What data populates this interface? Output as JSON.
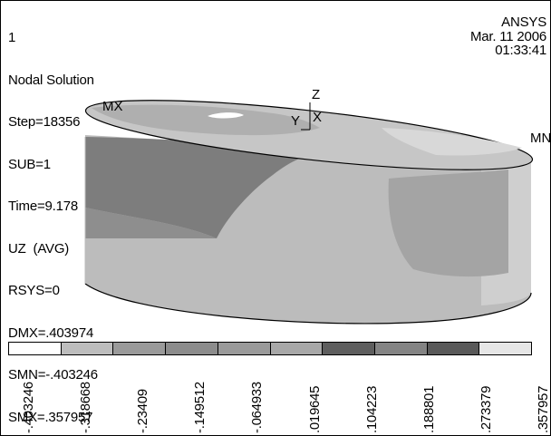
{
  "header": {
    "window_number": "1",
    "plot_title": "Nodal Solution",
    "step": "Step=18356",
    "sub": "SUB=1",
    "time": "Time=9.178",
    "result_item": "UZ  (AVG)",
    "rsys": "RSYS=0",
    "dmx": "DMX=.403974",
    "smn": "SMN=-.403246",
    "smx": "SMX=.357957"
  },
  "brand": {
    "name": "ANSYS",
    "date": "Mar. 11 2006",
    "time": "01:33:41"
  },
  "plot_labels": {
    "max": "MX",
    "min": "MN",
    "axis_z": "Z",
    "axis_y": "Y",
    "axis_x": "X"
  },
  "legend": {
    "colors": [
      "#ffffff",
      "#bdbdbd",
      "#9a9a9a",
      "#8c8c8c",
      "#9a9a9a",
      "#a8a8a8",
      "#5e5e5e",
      "#848484",
      "#595959",
      "#e6e6e6"
    ],
    "values": [
      "-.403246",
      "-.318668",
      "-.23409",
      "-.149512",
      "-.064933",
      ".019645",
      ".104223",
      ".188801",
      ".273379",
      ".357957"
    ]
  }
}
